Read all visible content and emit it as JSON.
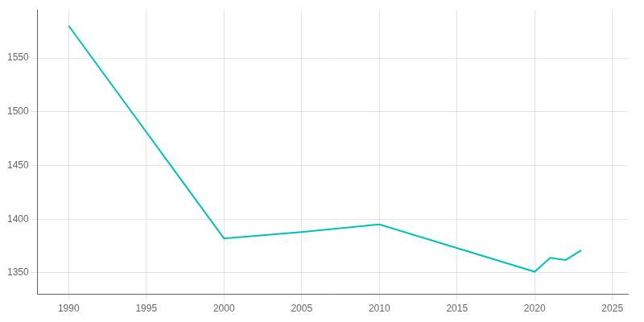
{
  "chart_data": {
    "type": "line",
    "x": [
      1990,
      2000,
      2005,
      2010,
      2020,
      2021,
      2022,
      2023
    ],
    "values": [
      1580,
      1382,
      1388,
      1395,
      1351,
      1364,
      1362,
      1371
    ],
    "color": "#00BFBF",
    "xlim": [
      1988,
      2026
    ],
    "ylim": [
      1330,
      1595
    ],
    "xticks": [
      1990,
      1995,
      2000,
      2005,
      2010,
      2015,
      2020,
      2025
    ],
    "yticks": [
      1350,
      1400,
      1450,
      1500,
      1550
    ],
    "grid": true
  }
}
